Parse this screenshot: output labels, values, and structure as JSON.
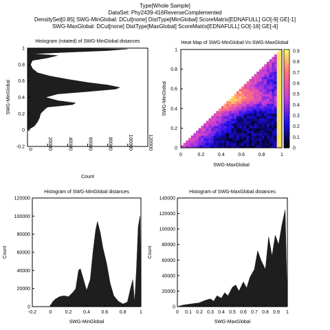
{
  "header": {
    "lines": [
      "Type[Whole Sample]",
      "DataSet: Phy2439-416ReverseComplemented",
      "DensitySet[0.85] SWG-MinGlobal: DCut[none] DistType[MinGlobal] ScoreMatrix[EDNAFULL] GO[-9] GE[-1]",
      "SWG-MaxGlobal: DCut[none] DistType[MaxGlobal] ScoreMatrix[EDNAFULL] GO[-16] GE[-4]"
    ]
  },
  "colors": {
    "fill": "#1e1e1e",
    "axis": "#000000",
    "heat_low": "#000000",
    "heat_mid1": "#1f0ff0",
    "heat_mid2": "#c63cd8",
    "heat_mid3": "#ff6f7f",
    "heat_high": "#ffff60"
  },
  "chart_data": [
    {
      "id": "rotated-histogram",
      "type": "area",
      "orientation": "horizontal",
      "title": "Histogram (rotated) of SWG-MinGlobal distances",
      "xlabel": "Count",
      "ylabel": "SWG-MinGlobal",
      "xlim": [
        0,
        120000
      ],
      "ylim": [
        -0.2,
        1.0
      ],
      "xticks": [
        0,
        20000,
        40000,
        60000,
        80000,
        100000,
        120000
      ],
      "yticks": [
        -0.2,
        0,
        0.2,
        0.4,
        0.6,
        0.8,
        1
      ],
      "points": [
        {
          "y": 0.0,
          "count": 0
        },
        {
          "y": 0.02,
          "count": 3000
        },
        {
          "y": 0.05,
          "count": 7000
        },
        {
          "y": 0.1,
          "count": 10000
        },
        {
          "y": 0.15,
          "count": 12000
        },
        {
          "y": 0.2,
          "count": 13000
        },
        {
          "y": 0.25,
          "count": 17000
        },
        {
          "y": 0.28,
          "count": 20000
        },
        {
          "y": 0.31,
          "count": 45000
        },
        {
          "y": 0.33,
          "count": 48000
        },
        {
          "y": 0.36,
          "count": 30000
        },
        {
          "y": 0.4,
          "count": 18000
        },
        {
          "y": 0.44,
          "count": 30000
        },
        {
          "y": 0.47,
          "count": 60000
        },
        {
          "y": 0.5,
          "count": 88000
        },
        {
          "y": 0.52,
          "count": 92000
        },
        {
          "y": 0.55,
          "count": 80000
        },
        {
          "y": 0.58,
          "count": 60000
        },
        {
          "y": 0.62,
          "count": 40000
        },
        {
          "y": 0.66,
          "count": 22000
        },
        {
          "y": 0.7,
          "count": 10000
        },
        {
          "y": 0.75,
          "count": 5000
        },
        {
          "y": 0.8,
          "count": 3000
        },
        {
          "y": 0.85,
          "count": 5000
        },
        {
          "y": 0.88,
          "count": 20000
        },
        {
          "y": 0.91,
          "count": 30000
        },
        {
          "y": 0.93,
          "count": 5000
        },
        {
          "y": 0.95,
          "count": 40000
        },
        {
          "y": 0.97,
          "count": 80000
        },
        {
          "y": 0.99,
          "count": 100000
        },
        {
          "y": 1.0,
          "count": 0
        }
      ]
    },
    {
      "id": "heat-map",
      "type": "heatmap",
      "title": "Heat Map of SWG-MinGlobal-Vs-SWG-MaxGlobal",
      "xlabel": "SWG-MaxGlobal",
      "ylabel": "SWG-MinGlobal",
      "xlim": [
        0,
        1
      ],
      "ylim": [
        0,
        1
      ],
      "xticks": [
        0,
        0.2,
        0.4,
        0.6,
        0.8,
        1
      ],
      "yticks": [
        0,
        0.2,
        0.4,
        0.6,
        0.8,
        1
      ],
      "colorbar_ticks": [
        0,
        0.1,
        0.2,
        0.3,
        0.4,
        0.5,
        0.6,
        0.7,
        0.8,
        0.9
      ],
      "colorbar_range": [
        0,
        0.9
      ]
    },
    {
      "id": "histogram-min",
      "type": "area",
      "title": "Histogram of SWG-MinGlobal distances",
      "xlabel": "SWG-MinGlobal",
      "ylabel": "Count",
      "xlim": [
        -0.2,
        1.0
      ],
      "ylim": [
        0,
        120000
      ],
      "xticks": [
        -0.2,
        0,
        0.2,
        0.4,
        0.6,
        0.8,
        1
      ],
      "yticks": [
        0,
        20000,
        40000,
        60000,
        80000,
        100000,
        120000
      ],
      "points": [
        {
          "x": 0.0,
          "y": 0
        },
        {
          "x": 0.02,
          "y": 5000
        },
        {
          "x": 0.05,
          "y": 8000
        },
        {
          "x": 0.1,
          "y": 11000
        },
        {
          "x": 0.15,
          "y": 12000
        },
        {
          "x": 0.2,
          "y": 11000
        },
        {
          "x": 0.25,
          "y": 16000
        },
        {
          "x": 0.28,
          "y": 20000
        },
        {
          "x": 0.31,
          "y": 40000
        },
        {
          "x": 0.33,
          "y": 42000
        },
        {
          "x": 0.36,
          "y": 32000
        },
        {
          "x": 0.4,
          "y": 18000
        },
        {
          "x": 0.44,
          "y": 30000
        },
        {
          "x": 0.47,
          "y": 60000
        },
        {
          "x": 0.5,
          "y": 85000
        },
        {
          "x": 0.52,
          "y": 94000
        },
        {
          "x": 0.55,
          "y": 82000
        },
        {
          "x": 0.58,
          "y": 65000
        },
        {
          "x": 0.62,
          "y": 48000
        },
        {
          "x": 0.66,
          "y": 26000
        },
        {
          "x": 0.7,
          "y": 12000
        },
        {
          "x": 0.75,
          "y": 6000
        },
        {
          "x": 0.8,
          "y": 3000
        },
        {
          "x": 0.85,
          "y": 5000
        },
        {
          "x": 0.88,
          "y": 18000
        },
        {
          "x": 0.91,
          "y": 30000
        },
        {
          "x": 0.93,
          "y": 5000
        },
        {
          "x": 0.95,
          "y": 40000
        },
        {
          "x": 0.97,
          "y": 88000
        },
        {
          "x": 0.99,
          "y": 100000
        },
        {
          "x": 1.0,
          "y": 0
        }
      ]
    },
    {
      "id": "histogram-max",
      "type": "area",
      "title": "Histogram of SWG-MaxGlobal distances",
      "xlabel": "SWG-MaxGlobal",
      "ylabel": "Count",
      "xlim": [
        0,
        1.0
      ],
      "ylim": [
        0,
        140000
      ],
      "xticks": [
        0,
        0.1,
        0.2,
        0.3,
        0.4,
        0.5,
        0.6,
        0.7,
        0.8,
        0.9,
        1
      ],
      "yticks": [
        0,
        20000,
        40000,
        60000,
        80000,
        100000,
        120000,
        140000
      ],
      "points": [
        {
          "x": 0.0,
          "y": 0
        },
        {
          "x": 0.05,
          "y": 2000
        },
        {
          "x": 0.1,
          "y": 3000
        },
        {
          "x": 0.15,
          "y": 4000
        },
        {
          "x": 0.2,
          "y": 5000
        },
        {
          "x": 0.25,
          "y": 8000
        },
        {
          "x": 0.3,
          "y": 10000
        },
        {
          "x": 0.33,
          "y": 7000
        },
        {
          "x": 0.36,
          "y": 14000
        },
        {
          "x": 0.4,
          "y": 11000
        },
        {
          "x": 0.43,
          "y": 18000
        },
        {
          "x": 0.46,
          "y": 14000
        },
        {
          "x": 0.5,
          "y": 25000
        },
        {
          "x": 0.53,
          "y": 28000
        },
        {
          "x": 0.56,
          "y": 20000
        },
        {
          "x": 0.6,
          "y": 32000
        },
        {
          "x": 0.63,
          "y": 24000
        },
        {
          "x": 0.66,
          "y": 38000
        },
        {
          "x": 0.7,
          "y": 48000
        },
        {
          "x": 0.73,
          "y": 72000
        },
        {
          "x": 0.76,
          "y": 60000
        },
        {
          "x": 0.8,
          "y": 48000
        },
        {
          "x": 0.83,
          "y": 90000
        },
        {
          "x": 0.86,
          "y": 65000
        },
        {
          "x": 0.89,
          "y": 92000
        },
        {
          "x": 0.92,
          "y": 80000
        },
        {
          "x": 0.95,
          "y": 105000
        },
        {
          "x": 0.98,
          "y": 125000
        },
        {
          "x": 1.0,
          "y": 0
        }
      ]
    }
  ]
}
